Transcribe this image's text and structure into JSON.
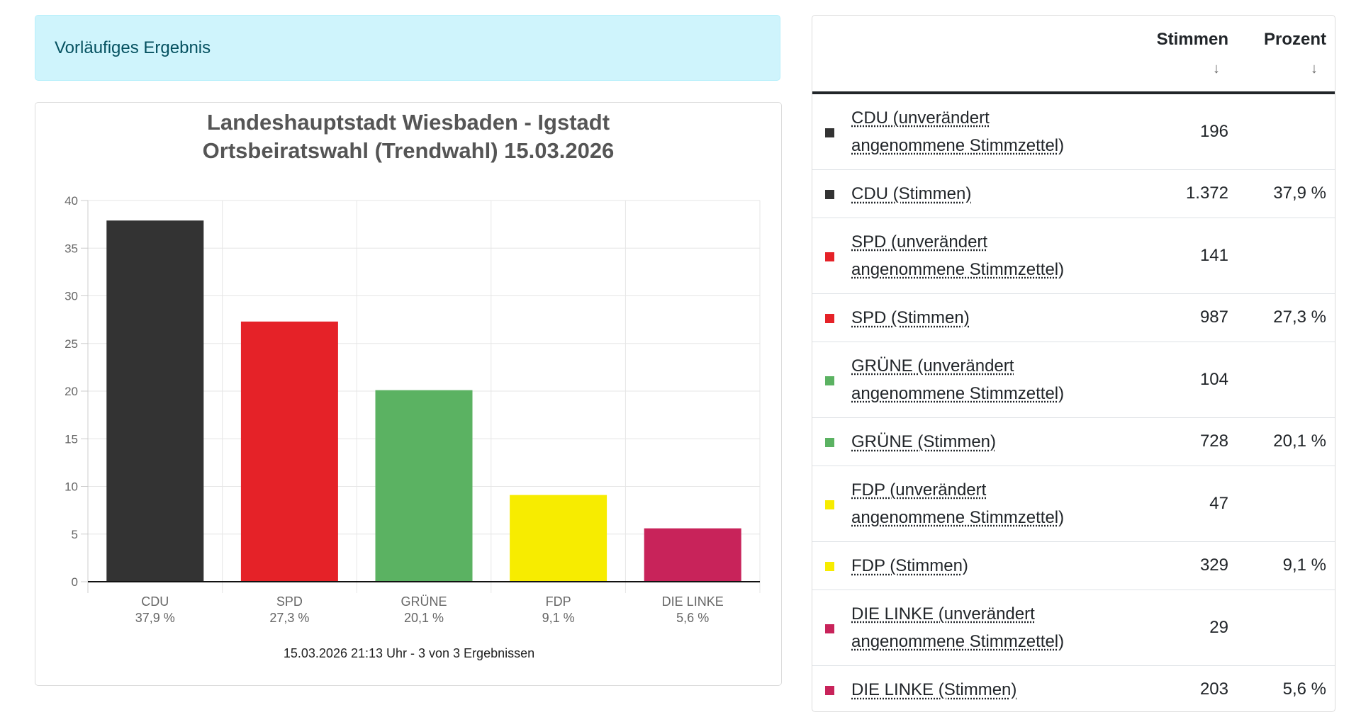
{
  "alert": {
    "text": "Vorläufiges Ergebnis"
  },
  "chart_data": {
    "type": "bar",
    "title": [
      "Landeshauptstadt Wiesbaden - Igstadt",
      "Ortsbeiratswahl (Trendwahl) 15.03.2026"
    ],
    "categories": [
      "CDU",
      "SPD",
      "GRÜNE",
      "FDP",
      "DIE LINKE"
    ],
    "category_sublabels": [
      "37,9 %",
      "27,3 %",
      "20,1 %",
      "9,1 %",
      "5,6 %"
    ],
    "values": [
      37.9,
      27.3,
      20.1,
      9.1,
      5.6
    ],
    "colors": [
      "#333333",
      "#e52228",
      "#5bb262",
      "#f7ec00",
      "#c8235a"
    ],
    "ylim": [
      0,
      40
    ],
    "yticks": [
      0,
      5,
      10,
      15,
      20,
      25,
      30,
      35,
      40
    ],
    "grid": true,
    "xlabel": "",
    "ylabel": "",
    "footer": "15.03.2026 21:13 Uhr - 3 von 3 Ergebnissen"
  },
  "table": {
    "headers": {
      "votes": "Stimmen",
      "percent": "Prozent",
      "sort_icon": "↓"
    },
    "rows": [
      {
        "name_1": "CDU (unverändert",
        "name_2": "angenommene Stimmzettel)",
        "votes": "196",
        "percent": "",
        "color": "#333333"
      },
      {
        "name_1": "CDU (Stimmen)",
        "name_2": "",
        "votes": "1.372",
        "percent": "37,9 %",
        "color": "#333333"
      },
      {
        "name_1": "SPD (unverändert",
        "name_2": "angenommene Stimmzettel)",
        "votes": "141",
        "percent": "",
        "color": "#e52228"
      },
      {
        "name_1": "SPD (Stimmen)",
        "name_2": "",
        "votes": "987",
        "percent": "27,3 %",
        "color": "#e52228"
      },
      {
        "name_1": "GRÜNE (unverändert",
        "name_2": "angenommene Stimmzettel)",
        "votes": "104",
        "percent": "",
        "color": "#5bb262"
      },
      {
        "name_1": "GRÜNE (Stimmen)",
        "name_2": "",
        "votes": "728",
        "percent": "20,1 %",
        "color": "#5bb262"
      },
      {
        "name_1": "FDP (unverändert",
        "name_2": "angenommene Stimmzettel)",
        "votes": "47",
        "percent": "",
        "color": "#f7ec00"
      },
      {
        "name_1": "FDP (Stimmen)",
        "name_2": "",
        "votes": "329",
        "percent": "9,1 %",
        "color": "#f7ec00"
      },
      {
        "name_1": "DIE LINKE (unverändert",
        "name_2": "angenommene Stimmzettel)",
        "votes": "29",
        "percent": "",
        "color": "#c8235a"
      },
      {
        "name_1": "DIE LINKE (Stimmen)",
        "name_2": "",
        "votes": "203",
        "percent": "5,6 %",
        "color": "#c8235a"
      }
    ]
  }
}
